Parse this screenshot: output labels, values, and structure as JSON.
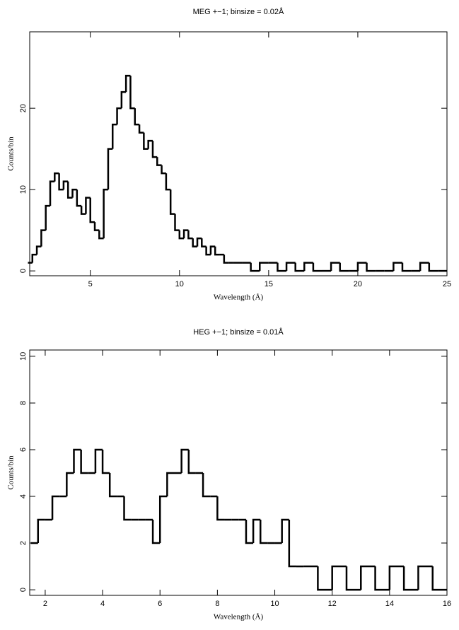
{
  "chart_data": [
    {
      "type": "histogram",
      "title": "MEG +−1; binsize = 0.02Å",
      "x_label": "Wavelength (Å)",
      "y_label": "Counts/bin",
      "color": "#000000",
      "bins": [
        1.5,
        1.75,
        2,
        2.25,
        2.5,
        2.75,
        3,
        3.25,
        3.5,
        3.75,
        4,
        4.25,
        4.5,
        4.75,
        5,
        5.25,
        5.5,
        5.75,
        6,
        6.25,
        6.5,
        6.75,
        7,
        7.25,
        7.5,
        7.75,
        8,
        8.25,
        8.5,
        8.75,
        9,
        9.25,
        9.5,
        9.75,
        10,
        10.25,
        10.5,
        10.75,
        11,
        11.25,
        11.5,
        11.75,
        12,
        12.25,
        12.5,
        12.75,
        13,
        13.5,
        14,
        14.5,
        15,
        15.5,
        16,
        16.5,
        17,
        17.5,
        18,
        18.5,
        19,
        19.5,
        20,
        20.5,
        21,
        21.5,
        22,
        22.5,
        23,
        23.5,
        24,
        24.5,
        25
      ],
      "counts": [
        1,
        2,
        3,
        5,
        8,
        11,
        12,
        10,
        11,
        9,
        10,
        8,
        7,
        9,
        6,
        5,
        4,
        10,
        15,
        18,
        20,
        22,
        24,
        20,
        18,
        17,
        15,
        16,
        14,
        13,
        12,
        10,
        7,
        5,
        4,
        5,
        4,
        3,
        4,
        3,
        2,
        3,
        2,
        2,
        1,
        1,
        1,
        1,
        0,
        1,
        1,
        0,
        1,
        0,
        1,
        0,
        0,
        1,
        0,
        0,
        1,
        0,
        0,
        0,
        1,
        0,
        0,
        1,
        0,
        0
      ],
      "xlim": [
        1.6,
        25
      ],
      "ylim": [
        -0.6,
        29.4
      ],
      "xticks": [
        5,
        10,
        15,
        20,
        25
      ],
      "yticks": [
        0,
        10,
        20
      ]
    },
    {
      "type": "histogram",
      "title": "HEG +−1; binsize = 0.01Å",
      "x_label": "Wavelength (Å)",
      "y_label": "Counts/bin",
      "color": "#000000",
      "bins": [
        1.5,
        1.75,
        2,
        2.25,
        2.5,
        2.75,
        3,
        3.25,
        3.5,
        3.75,
        4,
        4.25,
        4.5,
        4.75,
        5,
        5.25,
        5.5,
        5.75,
        6,
        6.25,
        6.5,
        6.75,
        7,
        7.25,
        7.5,
        7.75,
        8,
        8.25,
        8.5,
        8.75,
        9,
        9.25,
        9.5,
        9.75,
        10,
        10.25,
        10.5,
        10.75,
        11,
        11.5,
        12,
        12.5,
        13,
        13.5,
        14,
        14.5,
        15,
        15.5,
        16
      ],
      "counts": [
        2,
        3,
        3,
        4,
        4,
        5,
        6,
        5,
        5,
        6,
        5,
        4,
        4,
        3,
        3,
        3,
        3,
        2,
        4,
        5,
        5,
        6,
        5,
        5,
        4,
        4,
        3,
        3,
        3,
        3,
        2,
        3,
        2,
        2,
        2,
        3,
        1,
        1,
        1,
        0,
        1,
        0,
        1,
        0,
        1,
        0,
        1,
        0
      ],
      "xlim": [
        1.46,
        16
      ],
      "ylim": [
        -0.24,
        10.27
      ],
      "xticks": [
        2,
        4,
        6,
        8,
        10,
        12,
        14,
        16
      ],
      "yticks": [
        0,
        2,
        4,
        6,
        8,
        10
      ]
    }
  ]
}
